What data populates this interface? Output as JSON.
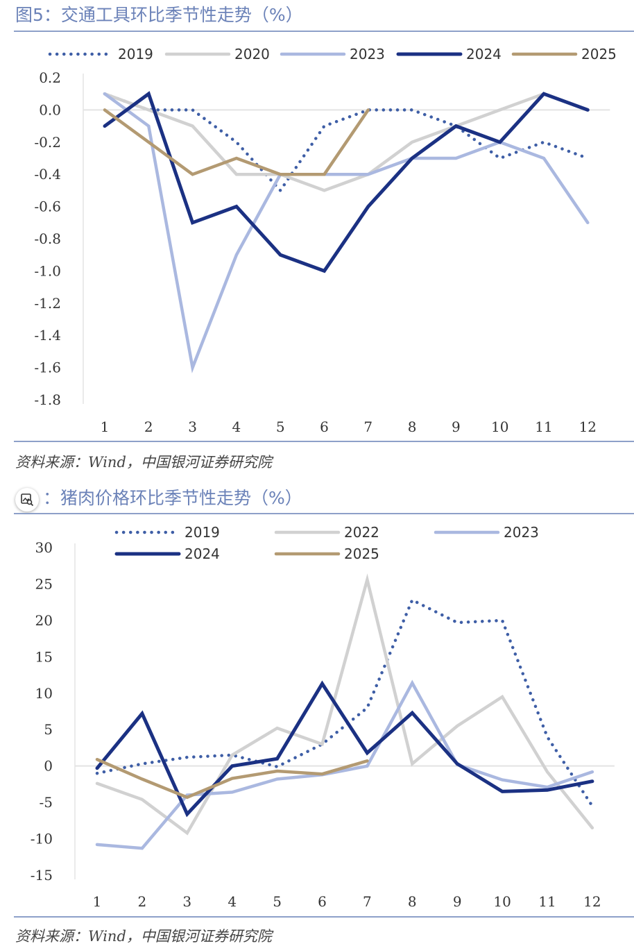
{
  "colors": {
    "title": "#6b82b8",
    "rule": "#8da0c9",
    "s2019": "#3e5ea6",
    "s2020": "#d1d1d1",
    "s2022": "#d1d1d1",
    "s2023": "#aab8e0",
    "s2024": "#1b3183",
    "s2025": "#b39a72"
  },
  "figure1": {
    "title": "图5：交通工具环比季节性走势（%）",
    "source": "资料来源：Wind，中国银河证券研究院"
  },
  "figure2": {
    "title": "：猪肉价格环比季节性走势（%）",
    "source": "资料来源：Wind，中国银河证券研究院",
    "overlay_icon": "image-search-icon"
  },
  "chart_data": [
    {
      "type": "line",
      "title": "交通工具环比季节性走势（%）",
      "categories": [
        "1",
        "2",
        "3",
        "4",
        "5",
        "6",
        "7",
        "8",
        "9",
        "10",
        "11",
        "12"
      ],
      "ylim": [
        -1.8,
        0.2
      ],
      "yticks": [
        0.2,
        0.0,
        -0.2,
        -0.4,
        -0.6,
        -0.8,
        -1.0,
        -1.2,
        -1.4,
        -1.6,
        -1.8
      ],
      "ytick_labels": [
        "0.2",
        "0.0",
        "-0.2",
        "-0.4",
        "-0.6",
        "-0.8",
        "-1.0",
        "-1.2",
        "-1.4",
        "-1.6",
        "-1.8"
      ],
      "grid": false,
      "legend_position": "top",
      "series": [
        {
          "name": "2019",
          "style": "dotted",
          "color": "#3e5ea6",
          "values": [
            0.1,
            0.0,
            0.0,
            -0.2,
            -0.5,
            -0.1,
            0.0,
            0.0,
            -0.1,
            -0.3,
            -0.2,
            -0.3
          ]
        },
        {
          "name": "2020",
          "style": "solid",
          "color": "#d1d1d1",
          "values": [
            0.1,
            0.0,
            -0.1,
            -0.4,
            -0.4,
            -0.5,
            -0.4,
            -0.2,
            -0.1,
            0.0,
            0.1,
            null
          ]
        },
        {
          "name": "2023",
          "style": "solid",
          "color": "#aab8e0",
          "values": [
            0.1,
            -0.1,
            -1.6,
            -0.9,
            -0.4,
            -0.4,
            -0.4,
            -0.3,
            -0.3,
            -0.2,
            -0.3,
            -0.7
          ]
        },
        {
          "name": "2024",
          "style": "solid-bold",
          "color": "#1b3183",
          "values": [
            -0.1,
            0.1,
            -0.7,
            -0.6,
            -0.9,
            -1.0,
            -0.6,
            -0.3,
            -0.1,
            -0.2,
            0.1,
            0.0
          ]
        },
        {
          "name": "2025",
          "style": "solid",
          "color": "#b39a72",
          "values": [
            0.0,
            -0.2,
            -0.4,
            -0.3,
            -0.4,
            -0.4,
            0.0,
            null,
            null,
            null,
            null,
            null
          ]
        }
      ]
    },
    {
      "type": "line",
      "title": "猪肉价格环比季节性走势（%）",
      "categories": [
        "1",
        "2",
        "3",
        "4",
        "5",
        "6",
        "7",
        "8",
        "9",
        "10",
        "11",
        "12"
      ],
      "ylim": [
        -15,
        30
      ],
      "yticks": [
        30,
        25,
        20,
        15,
        10,
        5,
        0,
        -5,
        -10,
        -15
      ],
      "ytick_labels": [
        "30",
        "25",
        "20",
        "15",
        "10",
        "5",
        "0",
        "-5",
        "-10",
        "-15"
      ],
      "grid": false,
      "legend_position": "top",
      "series": [
        {
          "name": "2019",
          "style": "dotted",
          "color": "#3e5ea6",
          "values": [
            -1.0,
            0.3,
            1.2,
            1.5,
            -0.1,
            3.0,
            8.0,
            22.8,
            19.7,
            20.0,
            4.0,
            -5.5
          ]
        },
        {
          "name": "2022",
          "style": "solid",
          "color": "#d1d1d1",
          "values": [
            -2.4,
            -4.6,
            -9.2,
            1.5,
            5.2,
            3.0,
            25.6,
            0.3,
            5.5,
            9.5,
            -0.8,
            -8.5
          ]
        },
        {
          "name": "2023",
          "style": "solid",
          "color": "#aab8e0",
          "values": [
            -10.8,
            -11.3,
            -4.0,
            -3.6,
            -1.8,
            -1.2,
            0.0,
            11.4,
            0.2,
            -1.9,
            -2.9,
            -0.8
          ]
        },
        {
          "name": "2024",
          "style": "solid-bold",
          "color": "#1b3183",
          "values": [
            -0.3,
            7.2,
            -6.6,
            0.0,
            1.0,
            11.3,
            1.8,
            7.3,
            0.3,
            -3.5,
            -3.3,
            -2.1
          ]
        },
        {
          "name": "2025",
          "style": "solid",
          "color": "#b39a72",
          "values": [
            0.9,
            -1.8,
            -4.3,
            -1.7,
            -0.7,
            -1.1,
            0.7,
            null,
            null,
            null,
            null,
            null
          ]
        }
      ]
    }
  ]
}
